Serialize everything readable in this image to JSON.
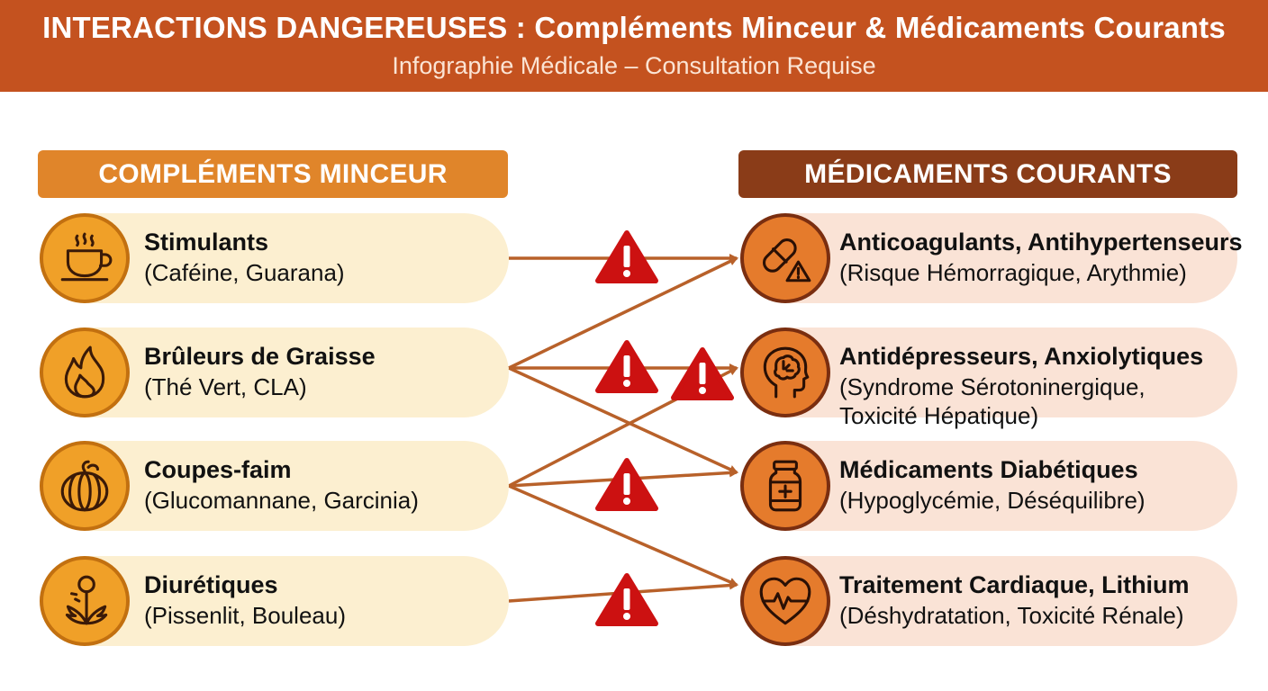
{
  "header": {
    "title": "INTERACTIONS DANGEREUSES : Compléments Minceur & Médicaments Courants",
    "subtitle": "Infographie Médicale – Consultation Requise"
  },
  "left_column": {
    "title": "COMPLÉMENTS MINCEUR",
    "items": [
      {
        "name": "Stimulants",
        "detail": "(Caféine, Guarana)",
        "icon": "coffee-cup-icon"
      },
      {
        "name": "Brûleurs de Graisse",
        "detail": "(Thé Vert, CLA)",
        "icon": "flame-icon"
      },
      {
        "name": "Coupes-faim",
        "detail": "(Glucomannane, Garcinia)",
        "icon": "pumpkin-icon"
      },
      {
        "name": "Diurétiques",
        "detail": "(Pissenlit, Bouleau)",
        "icon": "dandelion-icon"
      }
    ]
  },
  "right_column": {
    "title": "MÉDICAMENTS COURANTS",
    "items": [
      {
        "name": "Anticoagulants, Antihypertenseurs",
        "detail_lines": [
          "(Risque Hémorragique, Arythmie)"
        ],
        "icon": "pill-warning-icon"
      },
      {
        "name": "Antidépresseurs, Anxiolytiques",
        "detail_lines": [
          "(Syndrome Sérotoninergique,",
          "Toxicité Hépatique)"
        ],
        "icon": "brain-head-icon"
      },
      {
        "name": "Médicaments Diabétiques",
        "detail_lines": [
          "(Hypoglycémie, Déséquilibre)"
        ],
        "icon": "medicine-bottle-icon"
      },
      {
        "name": "Traitement Cardiaque, Lithium",
        "detail_lines": [
          "(Déshydratation, Toxicité Rénale)"
        ],
        "icon": "heart-pulse-icon"
      }
    ]
  },
  "interactions": [
    {
      "from": 0,
      "to": 0
    },
    {
      "from": 1,
      "to": 0
    },
    {
      "from": 1,
      "to": 1
    },
    {
      "from": 1,
      "to": 2
    },
    {
      "from": 2,
      "to": 1
    },
    {
      "from": 2,
      "to": 2
    },
    {
      "from": 2,
      "to": 3
    },
    {
      "from": 3,
      "to": 3
    }
  ],
  "warning_icon": "warning-triangle-icon",
  "colors": {
    "header_bg": "#c4521f",
    "left_header": "#e0852a",
    "right_header": "#8a3c18",
    "left_pill": "#fcefd0",
    "right_pill": "#fae3d6",
    "arrow": "#b8612a",
    "warning": "#cc1111"
  }
}
